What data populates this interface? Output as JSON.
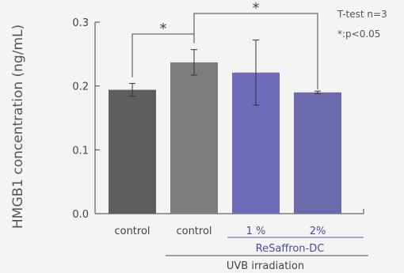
{
  "chart_data": {
    "type": "bar",
    "ylabel": "HMGB1 concentration (ng/mL)",
    "ylim": [
      0,
      0.3
    ],
    "yticks": [
      "0.0",
      "0.1",
      "0.2",
      "0.3"
    ],
    "categories": [
      "control",
      "control",
      "1 %",
      "2%"
    ],
    "values": [
      0.194,
      0.237,
      0.221,
      0.19
    ],
    "errors": [
      0.01,
      0.02,
      0.051,
      0.002
    ],
    "colors": [
      "#5e5e5e",
      "#7d7d7d",
      "#6e6cb8",
      "#6a6aad"
    ],
    "group_labels": {
      "resaffron": "ReSaffron-DC",
      "uvb": "UVB irradiation"
    },
    "significance": [
      {
        "from": 0,
        "to": 1,
        "label": "*"
      },
      {
        "from": 1,
        "to": 3,
        "label": "*"
      }
    ],
    "notes": [
      "T-test n=3",
      "*:p<0.05"
    ]
  }
}
